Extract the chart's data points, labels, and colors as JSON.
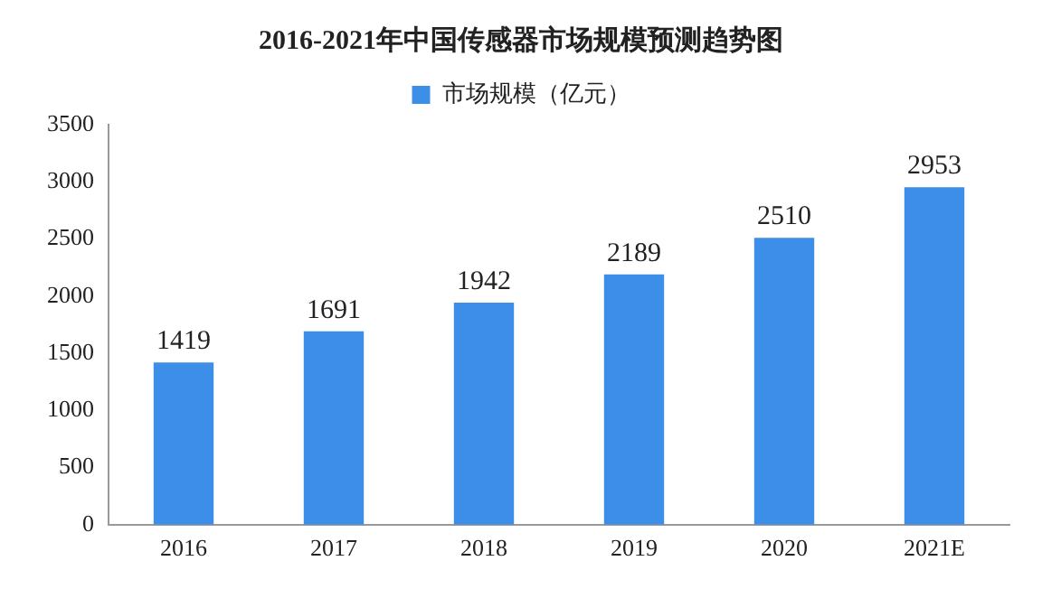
{
  "chart_data": {
    "type": "bar",
    "title": "2016-2021年中国传感器市场规模预测趋势图",
    "categories": [
      "2016",
      "2017",
      "2018",
      "2019",
      "2020",
      "2021E"
    ],
    "series": [
      {
        "name": "市场规模（亿元）",
        "color": "#3d8ee8",
        "values": [
          1419,
          1691,
          1942,
          2189,
          2510,
          2953
        ]
      }
    ],
    "ylim": [
      0,
      3500
    ],
    "yticks": [
      0,
      500,
      1000,
      1500,
      2000,
      2500,
      3000,
      3500
    ],
    "grid": false,
    "legend": "top",
    "data_labels": true
  }
}
